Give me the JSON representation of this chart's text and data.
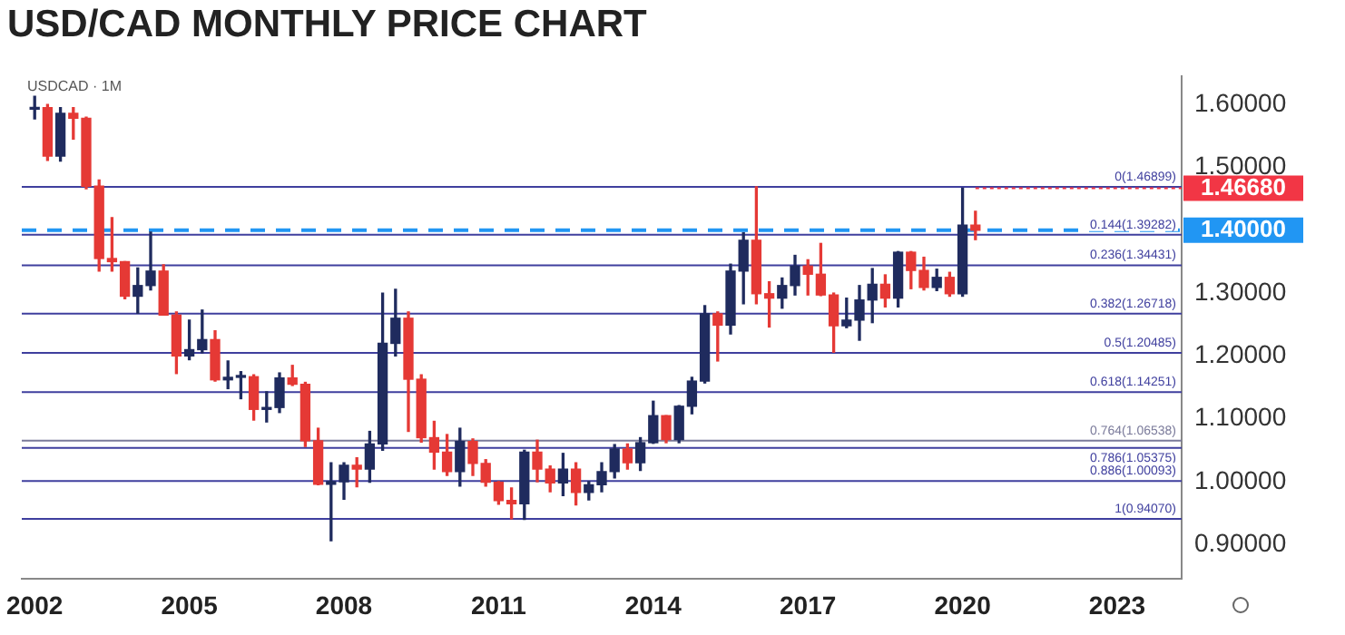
{
  "chart_data": {
    "type": "candlestick",
    "title": "USD/CAD MONTHLY PRICE CHART",
    "annotations": [
      "USDCAD · 1M"
    ],
    "x": [
      "2002-01",
      "2002-04",
      "2002-07",
      "2002-10",
      "2003-01",
      "2003-04",
      "2003-07",
      "2003-10",
      "2004-01",
      "2004-04",
      "2004-07",
      "2004-10",
      "2005-01",
      "2005-04",
      "2005-07",
      "2005-10",
      "2006-01",
      "2006-04",
      "2006-07",
      "2006-10",
      "2007-01",
      "2007-04",
      "2007-07",
      "2007-10",
      "2008-01",
      "2008-04",
      "2008-07",
      "2008-10",
      "2009-01",
      "2009-04",
      "2009-07",
      "2009-10",
      "2010-01",
      "2010-04",
      "2010-07",
      "2010-10",
      "2011-01",
      "2011-04",
      "2011-07",
      "2011-10",
      "2012-01",
      "2012-04",
      "2012-07",
      "2012-10",
      "2013-01",
      "2013-04",
      "2013-07",
      "2013-10",
      "2014-01",
      "2014-04",
      "2014-07",
      "2014-10",
      "2015-01",
      "2015-04",
      "2015-07",
      "2015-10",
      "2016-01",
      "2016-04",
      "2016-07",
      "2016-10",
      "2017-01",
      "2017-04",
      "2017-07",
      "2017-10",
      "2018-01",
      "2018-04",
      "2018-07",
      "2018-10",
      "2019-01",
      "2019-04",
      "2019-07",
      "2019-10",
      "2020-01",
      "2020-04"
    ],
    "ohlc": [
      [
        1.5925,
        1.6132,
        1.577,
        1.595
      ],
      [
        1.595,
        1.6,
        1.511,
        1.518
      ],
      [
        1.518,
        1.595,
        1.51,
        1.586
      ],
      [
        1.586,
        1.595,
        1.545,
        1.578
      ],
      [
        1.578,
        1.58,
        1.466,
        1.47
      ],
      [
        1.47,
        1.48,
        1.335,
        1.355
      ],
      [
        1.355,
        1.42,
        1.335,
        1.35
      ],
      [
        1.35,
        1.35,
        1.291,
        1.295
      ],
      [
        1.295,
        1.34,
        1.268,
        1.312
      ],
      [
        1.312,
        1.397,
        1.305,
        1.335
      ],
      [
        1.335,
        1.345,
        1.265,
        1.265
      ],
      [
        1.265,
        1.27,
        1.172,
        1.2
      ],
      [
        1.2,
        1.257,
        1.194,
        1.21
      ],
      [
        1.21,
        1.273,
        1.205,
        1.226
      ],
      [
        1.226,
        1.24,
        1.16,
        1.162
      ],
      [
        1.162,
        1.192,
        1.148,
        1.166
      ],
      [
        1.166,
        1.175,
        1.132,
        1.167
      ],
      [
        1.167,
        1.17,
        1.098,
        1.115
      ],
      [
        1.115,
        1.143,
        1.095,
        1.118
      ],
      [
        1.118,
        1.173,
        1.11,
        1.165
      ],
      [
        1.165,
        1.185,
        1.153,
        1.155
      ],
      [
        1.155,
        1.158,
        1.056,
        1.065
      ],
      [
        1.065,
        1.085,
        0.995,
        0.996
      ],
      [
        0.996,
        1.03,
        0.906,
        1.0
      ],
      [
        1.0,
        1.03,
        0.972,
        1.026
      ],
      [
        1.026,
        1.038,
        0.992,
        1.02
      ],
      [
        1.02,
        1.08,
        0.999,
        1.06
      ],
      [
        1.06,
        1.3,
        1.05,
        1.22
      ],
      [
        1.22,
        1.306,
        1.2,
        1.26
      ],
      [
        1.26,
        1.27,
        1.08,
        1.163
      ],
      [
        1.163,
        1.17,
        1.063,
        1.07
      ],
      [
        1.07,
        1.096,
        1.02,
        1.047
      ],
      [
        1.047,
        1.075,
        1.01,
        1.016
      ],
      [
        1.016,
        1.085,
        0.993,
        1.064
      ],
      [
        1.064,
        1.068,
        1.01,
        1.029
      ],
      [
        1.029,
        1.035,
        0.993,
        0.999
      ],
      [
        0.999,
        1.0,
        0.964,
        0.97
      ],
      [
        0.97,
        0.99,
        0.941,
        0.965
      ],
      [
        0.965,
        1.05,
        0.94,
        1.047
      ],
      [
        1.047,
        1.066,
        1.0,
        1.02
      ],
      [
        1.02,
        1.025,
        0.984,
        0.998
      ],
      [
        0.998,
        1.045,
        0.978,
        1.02
      ],
      [
        1.02,
        1.03,
        0.963,
        0.983
      ],
      [
        0.983,
        1.0,
        0.971,
        0.995
      ],
      [
        0.995,
        1.03,
        0.984,
        1.016
      ],
      [
        1.016,
        1.059,
        1.006,
        1.052
      ],
      [
        1.052,
        1.06,
        1.02,
        1.03
      ],
      [
        1.03,
        1.07,
        1.018,
        1.062
      ],
      [
        1.062,
        1.128,
        1.061,
        1.105
      ],
      [
        1.105,
        1.105,
        1.062,
        1.067
      ],
      [
        1.067,
        1.121,
        1.062,
        1.12
      ],
      [
        1.12,
        1.166,
        1.108,
        1.16
      ],
      [
        1.16,
        1.28,
        1.157,
        1.267
      ],
      [
        1.267,
        1.27,
        1.192,
        1.249
      ],
      [
        1.249,
        1.346,
        1.235,
        1.335
      ],
      [
        1.335,
        1.396,
        1.283,
        1.384
      ],
      [
        1.384,
        1.469,
        1.283,
        1.299
      ],
      [
        1.299,
        1.318,
        1.246,
        1.292
      ],
      [
        1.292,
        1.324,
        1.276,
        1.312
      ],
      [
        1.312,
        1.36,
        1.297,
        1.343
      ],
      [
        1.343,
        1.353,
        1.297,
        1.33
      ],
      [
        1.33,
        1.379,
        1.296,
        1.297
      ],
      [
        1.297,
        1.3,
        1.206,
        1.248
      ],
      [
        1.248,
        1.292,
        1.245,
        1.257
      ],
      [
        1.257,
        1.312,
        1.225,
        1.289
      ],
      [
        1.289,
        1.339,
        1.253,
        1.314
      ],
      [
        1.314,
        1.329,
        1.278,
        1.292
      ],
      [
        1.292,
        1.366,
        1.278,
        1.365
      ],
      [
        1.365,
        1.366,
        1.307,
        1.336
      ],
      [
        1.336,
        1.357,
        1.305,
        1.309
      ],
      [
        1.309,
        1.338,
        1.304,
        1.325
      ],
      [
        1.325,
        1.333,
        1.295,
        1.299
      ],
      [
        1.299,
        1.4668,
        1.295,
        1.408
      ],
      [
        1.408,
        1.43,
        1.385,
        1.4
      ]
    ],
    "colors": [
      "#1f2b5e",
      "#e53935",
      "#1f2b5e",
      "#e53935",
      "#e53935",
      "#e53935",
      "#e53935",
      "#e53935",
      "#1f2b5e",
      "#1f2b5e",
      "#e53935",
      "#e53935",
      "#1f2b5e",
      "#1f2b5e",
      "#e53935",
      "#1f2b5e",
      "#1f2b5e",
      "#e53935",
      "#1f2b5e",
      "#1f2b5e",
      "#e53935",
      "#e53935",
      "#e53935",
      "#1f2b5e",
      "#1f2b5e",
      "#e53935",
      "#1f2b5e",
      "#1f2b5e",
      "#1f2b5e",
      "#e53935",
      "#e53935",
      "#e53935",
      "#e53935",
      "#1f2b5e",
      "#e53935",
      "#e53935",
      "#e53935",
      "#e53935",
      "#1f2b5e",
      "#e53935",
      "#e53935",
      "#1f2b5e",
      "#e53935",
      "#1f2b5e",
      "#1f2b5e",
      "#1f2b5e",
      "#e53935",
      "#1f2b5e",
      "#1f2b5e",
      "#e53935",
      "#1f2b5e",
      "#1f2b5e",
      "#1f2b5e",
      "#e53935",
      "#1f2b5e",
      "#1f2b5e",
      "#e53935",
      "#e53935",
      "#1f2b5e",
      "#1f2b5e",
      "#e53935",
      "#e53935",
      "#e53935",
      "#1f2b5e",
      "#1f2b5e",
      "#1f2b5e",
      "#e53935",
      "#1f2b5e",
      "#e53935",
      "#e53935",
      "#1f2b5e",
      "#e53935",
      "#1f2b5e",
      "#e53935"
    ],
    "xlim": [
      "2001-10",
      "2024-04"
    ],
    "xticks": [
      "2002",
      "2005",
      "2008",
      "2011",
      "2014",
      "2017",
      "2020",
      "2023"
    ],
    "ylim": [
      0.845,
      1.645
    ],
    "yticks": [
      {
        "value": 0.9,
        "label": "0.90000"
      },
      {
        "value": 1.0,
        "label": "1.00000"
      },
      {
        "value": 1.1,
        "label": "1.10000"
      },
      {
        "value": 1.2,
        "label": "1.20000"
      },
      {
        "value": 1.3,
        "label": "1.30000"
      },
      {
        "value": 1.5,
        "label": "1.50000"
      },
      {
        "value": 1.6,
        "label": "1.60000"
      }
    ],
    "grid": false,
    "legend": false,
    "ref_lines": [
      {
        "axis": "y",
        "value": 1.46899,
        "label": "0(1.46899)",
        "color": "#3f3f9e"
      },
      {
        "axis": "y",
        "value": 1.39282,
        "label": "0.144(1.39282)",
        "color": "#3f3f9e"
      },
      {
        "axis": "y",
        "value": 1.34431,
        "label": "0.236(1.34431)",
        "color": "#3f3f9e"
      },
      {
        "axis": "y",
        "value": 1.26718,
        "label": "0.382(1.26718)",
        "color": "#3f3f9e"
      },
      {
        "axis": "y",
        "value": 1.20485,
        "label": "0.5(1.20485)",
        "color": "#3f3f9e"
      },
      {
        "axis": "y",
        "value": 1.14251,
        "label": "0.618(1.14251)",
        "color": "#3f3f9e"
      },
      {
        "axis": "y",
        "value": 1.06538,
        "label": "0.764(1.06538)",
        "color": "#7a7a9a"
      },
      {
        "axis": "y",
        "value": 1.05375,
        "label": "0.786(1.05375)",
        "color": "#3f3f9e"
      },
      {
        "axis": "y",
        "value": 1.00093,
        "label": "0.886(1.00093)",
        "color": "#3f3f9e"
      },
      {
        "axis": "y",
        "value": 0.9407,
        "label": "1(0.94070)",
        "color": "#3f3f9e"
      },
      {
        "axis": "y",
        "value": 1.4,
        "label": "1.40000",
        "color": "#2196f3",
        "line_style": "dashed"
      },
      {
        "axis": "y",
        "value": 1.4668,
        "label": "1.46680",
        "color": "#f23645",
        "line_style": "dotted"
      }
    ]
  }
}
